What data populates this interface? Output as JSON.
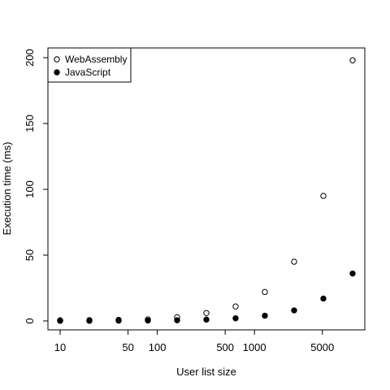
{
  "chart_data": {
    "type": "scatter",
    "xscale": "log",
    "xlabel": "User list size",
    "ylabel": "Execution time (ms)",
    "xlim": [
      10,
      10240
    ],
    "ylim": [
      0,
      200
    ],
    "x_ticks": [
      10,
      50,
      100,
      500,
      1000,
      5000
    ],
    "y_ticks": [
      0,
      50,
      100,
      150,
      200
    ],
    "x_tick_labels": [
      "10",
      "50",
      "100",
      "500",
      "1000",
      "5000"
    ],
    "y_tick_labels": [
      "0",
      "50",
      "100",
      "150",
      "200"
    ],
    "legend_position": "top-left",
    "x": [
      10,
      20,
      40,
      80,
      160,
      320,
      640,
      1280,
      2560,
      5120,
      10240
    ],
    "series": [
      {
        "name": "WebAssembly",
        "marker": "open-circle",
        "values": [
          0.5,
          0.6,
          0.8,
          1.2,
          2.8,
          6,
          11,
          22,
          45,
          95,
          198
        ]
      },
      {
        "name": "JavaScript",
        "marker": "filled-circle",
        "values": [
          0.1,
          0.1,
          0.2,
          0.3,
          0.5,
          1,
          2,
          4,
          8,
          17,
          36
        ]
      }
    ]
  }
}
